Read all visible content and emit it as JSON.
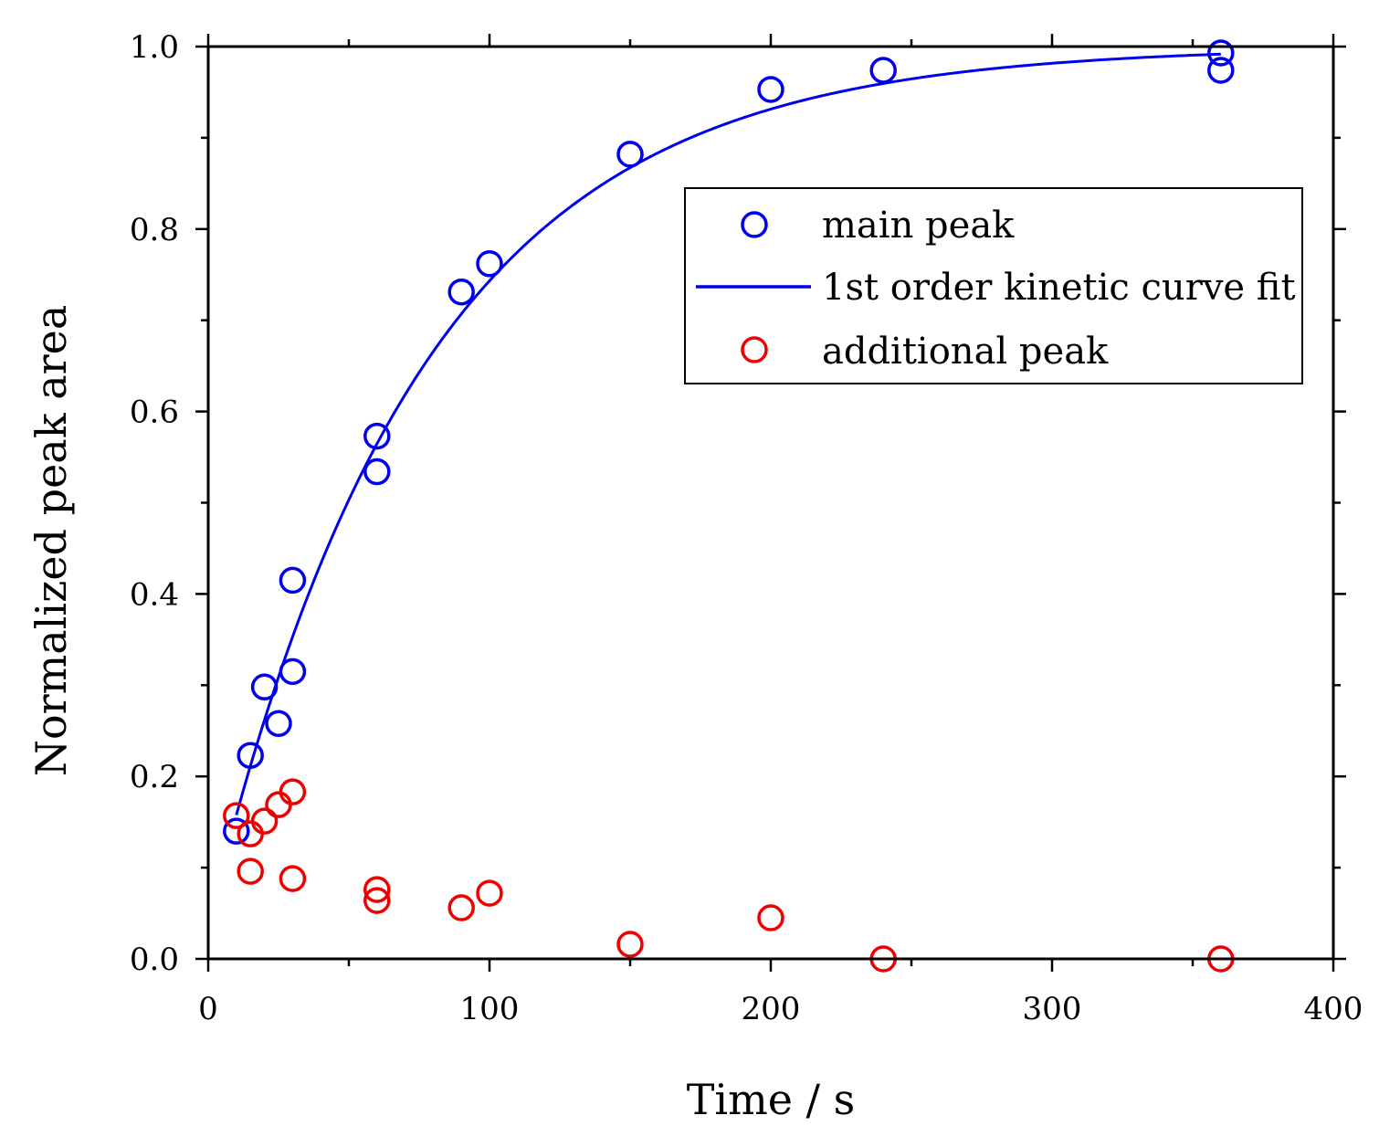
{
  "chart_data": {
    "type": "scatter",
    "xlabel": "Time / s",
    "ylabel": "Normalized peak area",
    "xlim": [
      0,
      400
    ],
    "ylim": [
      0,
      1.0
    ],
    "xticks": [
      0,
      100,
      200,
      300,
      400
    ],
    "xtick_labels": [
      "0",
      "100",
      "200",
      "300",
      "400"
    ],
    "yticks": [
      0.0,
      0.2,
      0.4,
      0.6,
      0.8,
      1.0
    ],
    "ytick_labels": [
      "0.0",
      "0.2",
      "0.4",
      "0.6",
      "0.8",
      "1.0"
    ],
    "grid": false,
    "legend_position": "top-right",
    "series": [
      {
        "name": "main peak",
        "kind": "scatter",
        "color": "#0000ee",
        "x": [
          10,
          15,
          20,
          25,
          30,
          30,
          60,
          60,
          90,
          100,
          150,
          200,
          240,
          360,
          360
        ],
        "y": [
          0.14,
          0.223,
          0.298,
          0.258,
          0.415,
          0.315,
          0.573,
          0.534,
          0.731,
          0.762,
          0.882,
          0.953,
          0.974,
          0.993,
          0.974
        ]
      },
      {
        "name": "1st order kinetic curve fit",
        "kind": "line",
        "color": "#0000ee",
        "model": "y = 1 - exp(-k*(t - t0))",
        "k": 0.0132,
        "t0": -3,
        "x_range": [
          10,
          360
        ]
      },
      {
        "name": "additional peak",
        "kind": "scatter",
        "color": "#ee0000",
        "x": [
          10,
          15,
          15,
          20,
          25,
          30,
          30,
          60,
          60,
          90,
          100,
          150,
          200,
          240,
          360
        ],
        "y": [
          0.157,
          0.137,
          0.096,
          0.151,
          0.169,
          0.183,
          0.088,
          0.076,
          0.064,
          0.056,
          0.072,
          0.016,
          0.045,
          0.0,
          0.0
        ]
      }
    ]
  }
}
